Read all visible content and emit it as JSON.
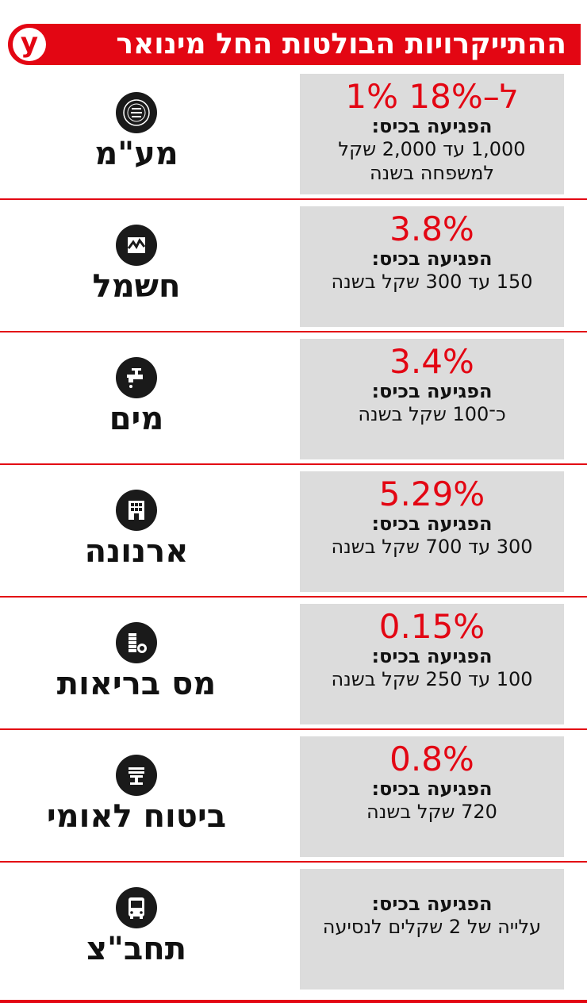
{
  "header": {
    "title": "ההתייקרויות הבולטות החל מינואר",
    "logo": "y"
  },
  "rows": [
    {
      "label": "מע\"מ",
      "icon": "tax-authority-seal-icon",
      "pct": "1% ל–18%",
      "impact_label": "הפגיעה בכיס:",
      "impact_text": "1,000 עד 2,000 שקל למשפחה בשנה"
    },
    {
      "label": "חשמל",
      "icon": "electric-company-icon",
      "pct": "3.8%",
      "impact_label": "הפגיעה בכיס:",
      "impact_text": "150 עד 300 שקל בשנה"
    },
    {
      "label": "מים",
      "icon": "faucet-icon",
      "pct": "3.4%",
      "impact_label": "הפגיעה בכיס:",
      "impact_text": "כ־100 שקל בשנה"
    },
    {
      "label": "ארנונה",
      "icon": "building-icon",
      "pct": "5.29%",
      "impact_label": "הפגיעה בכיס:",
      "impact_text": "300 עד 700 שקל בשנה"
    },
    {
      "label": "מס בריאות",
      "icon": "coins-icon",
      "pct": "0.15%",
      "impact_label": "הפגיעה בכיס:",
      "impact_text": "100 עד 250 שקל בשנה"
    },
    {
      "label": "ביטוח לאומי",
      "icon": "menorah-icon",
      "pct": "0.8%",
      "impact_label": "הפגיעה בכיס:",
      "impact_text": "720 שקל בשנה"
    },
    {
      "label": "תחב\"צ",
      "icon": "bus-icon",
      "pct": "",
      "impact_label": "הפגיעה בכיס:",
      "impact_text": "עלייה של 2 שקלים לנסיעה"
    }
  ],
  "colors": {
    "accent": "#e30613",
    "box": "#dcdcdc",
    "icon_bg": "#1a1a1a"
  }
}
